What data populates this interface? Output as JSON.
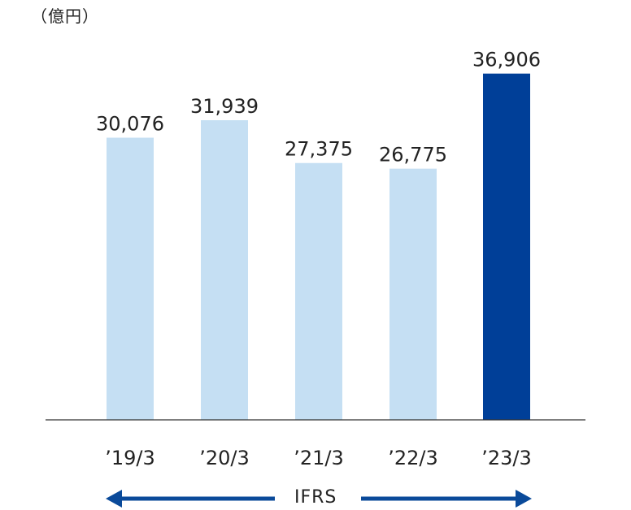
{
  "chart_data": {
    "type": "bar",
    "unit_label": "（億円）",
    "categories": [
      "’19/3",
      "’20/3",
      "’21/3",
      "’22/3",
      "’23/3"
    ],
    "values": [
      30076,
      31939,
      27375,
      26775,
      36906
    ],
    "value_labels": [
      "30,076",
      "31,939",
      "27,375",
      "26,775",
      "36,906"
    ],
    "ylim": [
      0,
      38000
    ],
    "grid": false,
    "colors": [
      "#c5dff3",
      "#c5dff3",
      "#c5dff3",
      "#c5dff3",
      "#003f98"
    ],
    "baseline_color": "#333333",
    "annotation": {
      "label": "IFRS",
      "arrow_color": "#0a4a9a"
    }
  }
}
